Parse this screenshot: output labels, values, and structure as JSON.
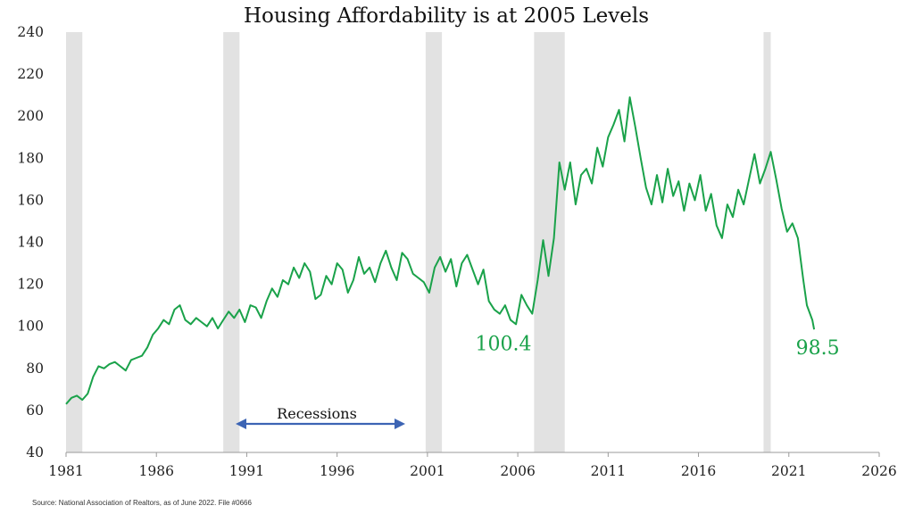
{
  "chart_data": {
    "type": "line",
    "title": "Housing Affordability is at 2005 Levels",
    "xlabel": "",
    "ylabel": "",
    "xlim": [
      1981,
      2026
    ],
    "ylim": [
      40,
      240
    ],
    "x_ticks": [
      "1981",
      "1986",
      "1991",
      "1996",
      "2001",
      "2006",
      "2011",
      "2016",
      "2021",
      "2026"
    ],
    "y_ticks": [
      "40",
      "60",
      "80",
      "100",
      "120",
      "140",
      "160",
      "180",
      "200",
      "220",
      "240"
    ],
    "grid": false,
    "line_color": "#1aa24a",
    "recession_color": "#e2e2e2",
    "series": [
      {
        "x": [
          1981.0,
          1981.3,
          1981.6,
          1981.9,
          1982.2,
          1982.5,
          1982.8,
          1983.1,
          1983.4,
          1983.7,
          1984.0,
          1984.3,
          1984.6,
          1984.9,
          1985.2,
          1985.5,
          1985.8,
          1986.1,
          1986.4,
          1986.7,
          1987.0,
          1987.3,
          1987.6,
          1987.9,
          1988.2,
          1988.5,
          1988.8,
          1989.1,
          1989.4,
          1989.7,
          1990.0,
          1990.3,
          1990.6,
          1990.9,
          1991.2,
          1991.5,
          1991.8,
          1992.1,
          1992.4,
          1992.7,
          1993.0,
          1993.3,
          1993.6,
          1993.9,
          1994.2,
          1994.5,
          1994.8,
          1995.1,
          1995.4,
          1995.7,
          1996.0,
          1996.3,
          1996.6,
          1996.9,
          1997.2,
          1997.5,
          1997.8,
          1998.1,
          1998.4,
          1998.7,
          1999.0,
          1999.3,
          1999.6,
          1999.9,
          2000.2,
          2000.5,
          2000.8,
          2001.1,
          2001.4,
          2001.7,
          2002.0,
          2002.3,
          2002.6,
          2002.9,
          2003.2,
          2003.5,
          2003.8,
          2004.1,
          2004.4,
          2004.7,
          2005.0,
          2005.3,
          2005.6,
          2005.9,
          2006.2,
          2006.5,
          2006.8,
          2007.1,
          2007.4,
          2007.7,
          2008.0,
          2008.3,
          2008.6,
          2008.9,
          2009.2,
          2009.5,
          2009.8,
          2010.1,
          2010.4,
          2010.7,
          2011.0,
          2011.3,
          2011.6,
          2011.9,
          2012.2,
          2012.5,
          2012.8,
          2013.1,
          2013.4,
          2013.7,
          2014.0,
          2014.3,
          2014.6,
          2014.9,
          2015.2,
          2015.5,
          2015.8,
          2016.1,
          2016.4,
          2016.7,
          2017.0,
          2017.3,
          2017.6,
          2017.9,
          2018.2,
          2018.5,
          2018.8,
          2019.1,
          2019.4,
          2019.7,
          2020.0,
          2020.3,
          2020.6,
          2020.9,
          2021.2,
          2021.5,
          2021.8,
          2022.0,
          2022.3,
          2022.4
        ],
        "y": [
          63,
          66,
          67,
          65,
          68,
          76,
          81,
          80,
          82,
          83,
          81,
          79,
          84,
          85,
          86,
          90,
          96,
          99,
          103,
          101,
          108,
          110,
          103,
          101,
          104,
          102,
          100,
          104,
          99,
          103,
          107,
          104,
          108,
          102,
          110,
          109,
          104,
          112,
          118,
          114,
          122,
          120,
          128,
          123,
          130,
          126,
          113,
          115,
          124,
          120,
          130,
          127,
          116,
          122,
          133,
          125,
          128,
          121,
          130,
          136,
          128,
          122,
          135,
          132,
          125,
          123,
          121,
          116,
          128,
          133,
          126,
          132,
          119,
          130,
          134,
          127,
          120,
          127,
          112,
          108,
          106,
          110,
          103,
          101,
          115,
          110,
          106,
          122,
          141,
          124,
          142,
          178,
          165,
          178,
          158,
          172,
          175,
          168,
          185,
          176,
          190,
          196,
          203,
          188,
          209,
          195,
          180,
          166,
          158,
          172,
          159,
          175,
          162,
          169,
          155,
          168,
          160,
          172,
          155,
          163,
          148,
          142,
          158,
          152,
          165,
          158,
          170,
          182,
          168,
          175,
          183,
          170,
          156,
          145,
          149,
          142,
          122,
          110,
          103,
          98.5
        ]
      }
    ],
    "recessions": [
      [
        1981.0,
        1981.9
      ],
      [
        1989.7,
        1990.6
      ],
      [
        2000.9,
        2001.8
      ],
      [
        2006.9,
        2008.6
      ],
      [
        2019.6,
        2020.0
      ]
    ],
    "annotations": [
      {
        "text": "100.4",
        "x": 2005.4,
        "y": 101
      },
      {
        "text": "98.5",
        "x": 2022.4,
        "y": 98.5
      }
    ]
  },
  "recessions_label": "Recessions",
  "source_text": "Source: National Association of Realtors, as of June 2022. File #0666"
}
